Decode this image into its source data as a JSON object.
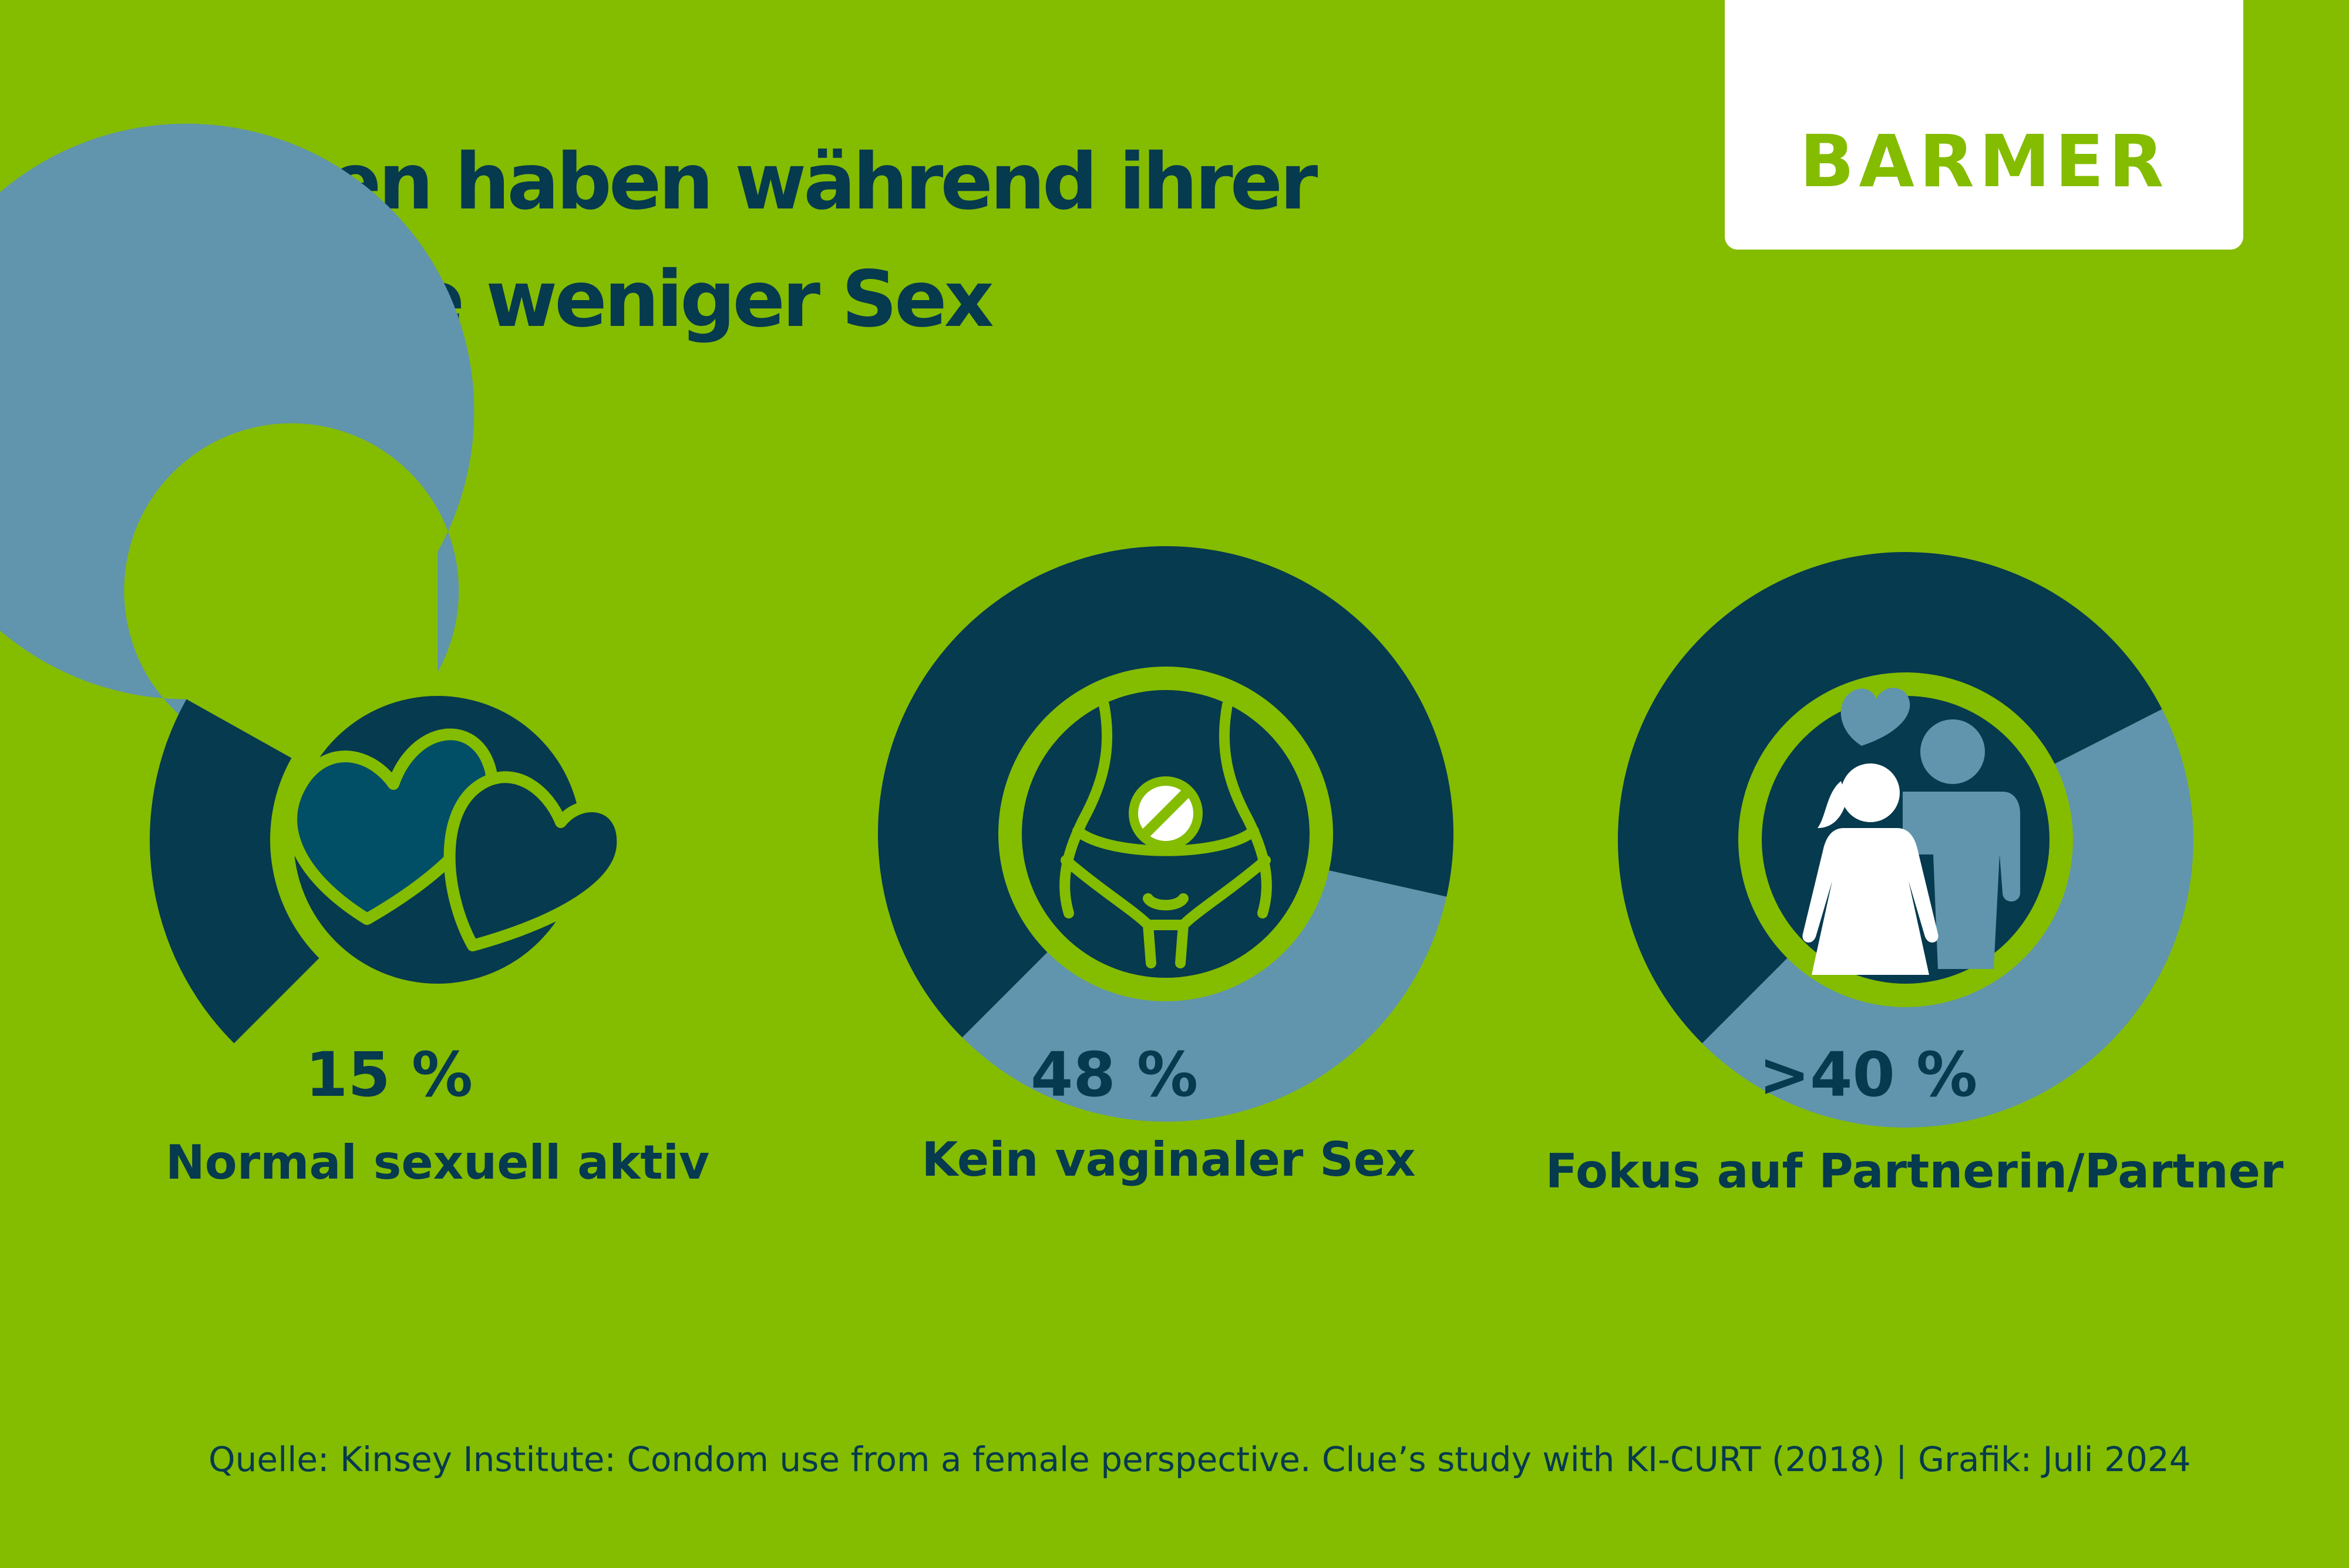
{
  "title": {
    "line1": "Frauen haben während ihrer",
    "line2": "Periode weniger Sex"
  },
  "logo": {
    "text": "BARMER"
  },
  "colors": {
    "background": "#84bc00",
    "dark": "#063a4e",
    "track": "#6095ad",
    "heart": "#004f66",
    "white": "#ffffff"
  },
  "chart_data": [
    {
      "type": "gauge",
      "value": 15,
      "max": 100,
      "value_label": "15 %",
      "category": "Normal sexuell aktiv",
      "icon": "hearts-icon"
    },
    {
      "type": "gauge",
      "value": 48,
      "max": 100,
      "value_label": "48 %",
      "category": "Kein vaginaler Sex",
      "icon": "no-vaginal-sex-icon"
    },
    {
      "type": "gauge",
      "value": 40,
      "max": 100,
      "value_label": ">40 %",
      "category": "Fokus auf Partnerin/Partner",
      "icon": "couple-icon"
    }
  ],
  "source": "Quelle: Kinsey Institute: Condom use from a female perspective. Clue’s study with KI-CURT (2018) | Grafik: Juli 2024"
}
